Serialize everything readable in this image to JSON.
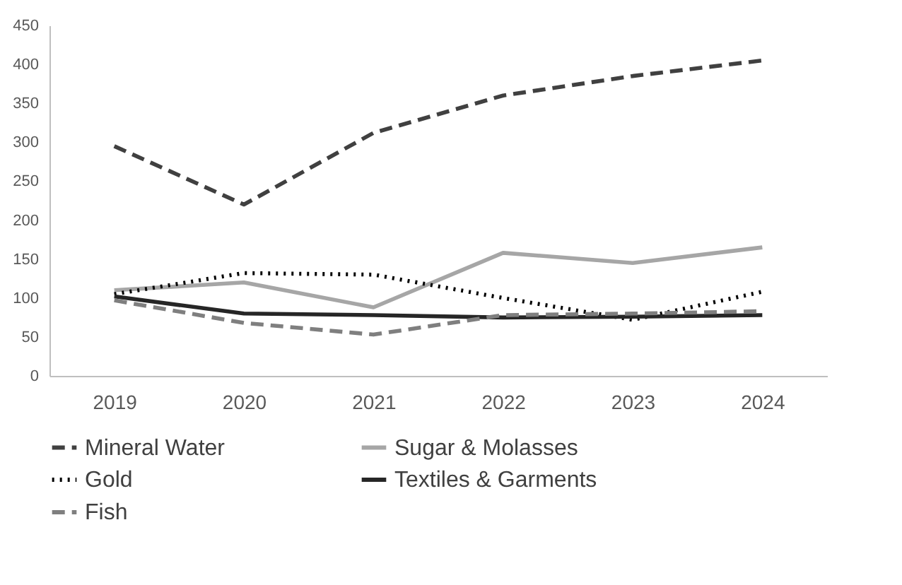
{
  "chart_data": {
    "type": "line",
    "categories": [
      "2019",
      "2020",
      "2021",
      "2022",
      "2023",
      "2024"
    ],
    "series": [
      {
        "name": "Mineral Water",
        "color": "#404040",
        "line_style": "dashed",
        "values": [
          295,
          220,
          312,
          360,
          385,
          405
        ]
      },
      {
        "name": "Sugar & Molasses",
        "color": "#a6a6a6",
        "line_style": "solid",
        "values": [
          110,
          120,
          88,
          158,
          145,
          165
        ]
      },
      {
        "name": "Gold",
        "color": "#000000",
        "line_style": "dotted",
        "values": [
          105,
          132,
          130,
          100,
          72,
          108
        ]
      },
      {
        "name": "Textiles & Garments",
        "color": "#262626",
        "line_style": "solid",
        "values": [
          102,
          80,
          78,
          75,
          76,
          78
        ]
      },
      {
        "name": "Fish",
        "color": "#7f7f7f",
        "line_style": "dashed",
        "values": [
          97,
          68,
          53,
          78,
          80,
          83
        ]
      }
    ],
    "ylim": [
      0,
      450
    ],
    "yticks": [
      0,
      50,
      100,
      150,
      200,
      250,
      300,
      350,
      400,
      450
    ],
    "grid": false,
    "legend": "bottom",
    "marker": "none"
  }
}
